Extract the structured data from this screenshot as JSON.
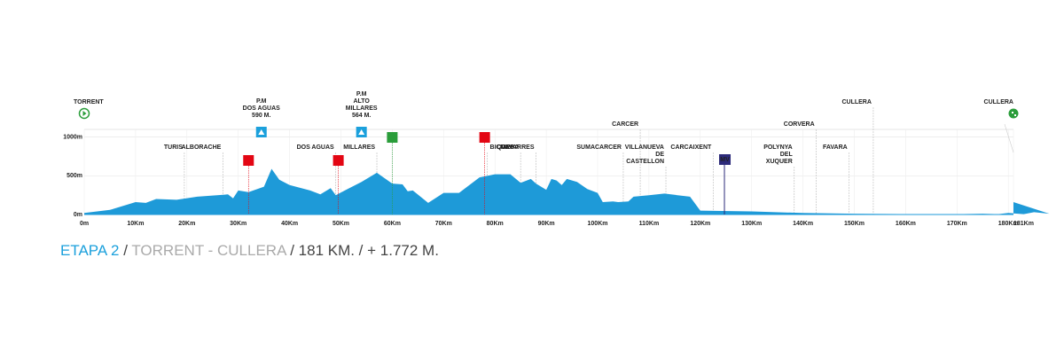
{
  "chart_data": {
    "type": "area",
    "color": "#1e9ad8",
    "x": [
      0,
      5,
      10,
      12,
      14,
      18,
      22,
      28,
      29,
      30,
      32,
      35,
      36.5,
      38,
      40,
      44,
      46,
      48,
      49,
      51,
      54,
      57,
      60,
      62,
      63,
      64,
      67,
      70,
      73,
      77,
      80,
      83,
      85,
      87,
      88,
      90,
      91,
      92,
      93,
      94,
      96,
      98,
      100,
      101,
      103,
      104,
      106,
      107,
      110,
      113,
      118,
      120,
      130,
      140,
      150,
      160,
      170,
      175,
      178,
      180,
      183,
      185,
      188,
      181
    ],
    "values": [
      20,
      60,
      160,
      150,
      200,
      190,
      230,
      260,
      210,
      310,
      290,
      360,
      590,
      450,
      380,
      310,
      260,
      340,
      250,
      320,
      420,
      540,
      400,
      390,
      300,
      310,
      150,
      280,
      280,
      480,
      520,
      520,
      410,
      460,
      400,
      320,
      460,
      440,
      380,
      460,
      420,
      330,
      280,
      160,
      170,
      160,
      170,
      230,
      250,
      270,
      230,
      50,
      40,
      20,
      10,
      5,
      5,
      10,
      5,
      20,
      5,
      30,
      10,
      160
    ],
    "xlim": [
      0,
      181
    ],
    "ylim": [
      0,
      1100
    ],
    "xticks": [
      {
        "value": 0,
        "label": "0m"
      },
      {
        "value": 10,
        "label": "10Km"
      },
      {
        "value": 20,
        "label": "20Km"
      },
      {
        "value": 30,
        "label": "30Km"
      },
      {
        "value": 40,
        "label": "40Km"
      },
      {
        "value": 50,
        "label": "50Km"
      },
      {
        "value": 60,
        "label": "60Km"
      },
      {
        "value": 70,
        "label": "70Km"
      },
      {
        "value": 80,
        "label": "80Km"
      },
      {
        "value": 90,
        "label": "90Km"
      },
      {
        "value": 100,
        "label": "100Km"
      },
      {
        "value": 110,
        "label": "110Km"
      },
      {
        "value": 120,
        "label": "120Km"
      },
      {
        "value": 130,
        "label": "130Km"
      },
      {
        "value": 140,
        "label": "140Km"
      },
      {
        "value": 150,
        "label": "150Km"
      },
      {
        "value": 160,
        "label": "160Km"
      },
      {
        "value": 170,
        "label": "170Km"
      },
      {
        "value": 180,
        "label": "180Km"
      },
      {
        "value": 181,
        "label": "181Km"
      }
    ],
    "yticks": [
      {
        "value": 0,
        "label": "0m"
      },
      {
        "value": 500,
        "label": "500m"
      },
      {
        "value": 1000,
        "label": "1000m"
      }
    ],
    "start": {
      "name": "TORRENT",
      "km": 0
    },
    "finish": {
      "name": "CULLERA",
      "km": 181
    },
    "places": [
      {
        "lines": [
          "TURIS"
        ],
        "km": 19.5
      },
      {
        "lines": [
          "ALBORACHE"
        ],
        "km": 27
      },
      {
        "lines": [
          "DOS AGUAS"
        ],
        "km": 49
      },
      {
        "lines": [
          "MILLARES"
        ],
        "km": 57
      },
      {
        "lines": [
          "BICORP"
        ],
        "km": 78.5
      },
      {
        "lines": [
          "QUESA"
        ],
        "km": 85
      },
      {
        "lines": [
          "NAVARRES"
        ],
        "km": 88
      },
      {
        "lines": [
          "SUMACARCER"
        ],
        "km": 105
      },
      {
        "lines": [
          "CARCER"
        ],
        "km": 108.3
      },
      {
        "lines": [
          "VILLANUEVA",
          "DE",
          "CASTELLON"
        ],
        "km": 113.3
      },
      {
        "lines": [
          "CARCAIXENT"
        ],
        "km": 122.5
      },
      {
        "lines": [
          "POLYNYA",
          "DEL",
          "XUQUER"
        ],
        "km": 138.3
      },
      {
        "lines": [
          "CORVERA"
        ],
        "km": 142.6
      },
      {
        "lines": [
          "FAVARA"
        ],
        "km": 149
      },
      {
        "lines": [
          "CULLERA"
        ],
        "km": 153.7
      }
    ],
    "climbs": [
      {
        "lines": [
          "P.M",
          "DOS AGUAS",
          "590 M."
        ],
        "km": 34.5
      },
      {
        "lines": [
          "P.M",
          "ALTO",
          "MILLARES",
          "564 M."
        ],
        "km": 54
      }
    ],
    "sprints": [
      {
        "km": 60
      }
    ],
    "feeds": [
      {
        "km": 32
      },
      {
        "km": 49.5
      },
      {
        "km": 78
      }
    ],
    "mv": {
      "label": "MV",
      "km": 124.7
    },
    "caption": {
      "stage": "ETAPA 2",
      "sep1": " / ",
      "route": "TORRENT - CULLERA",
      "rest": " / 181 KM. / + 1.772 M."
    }
  }
}
